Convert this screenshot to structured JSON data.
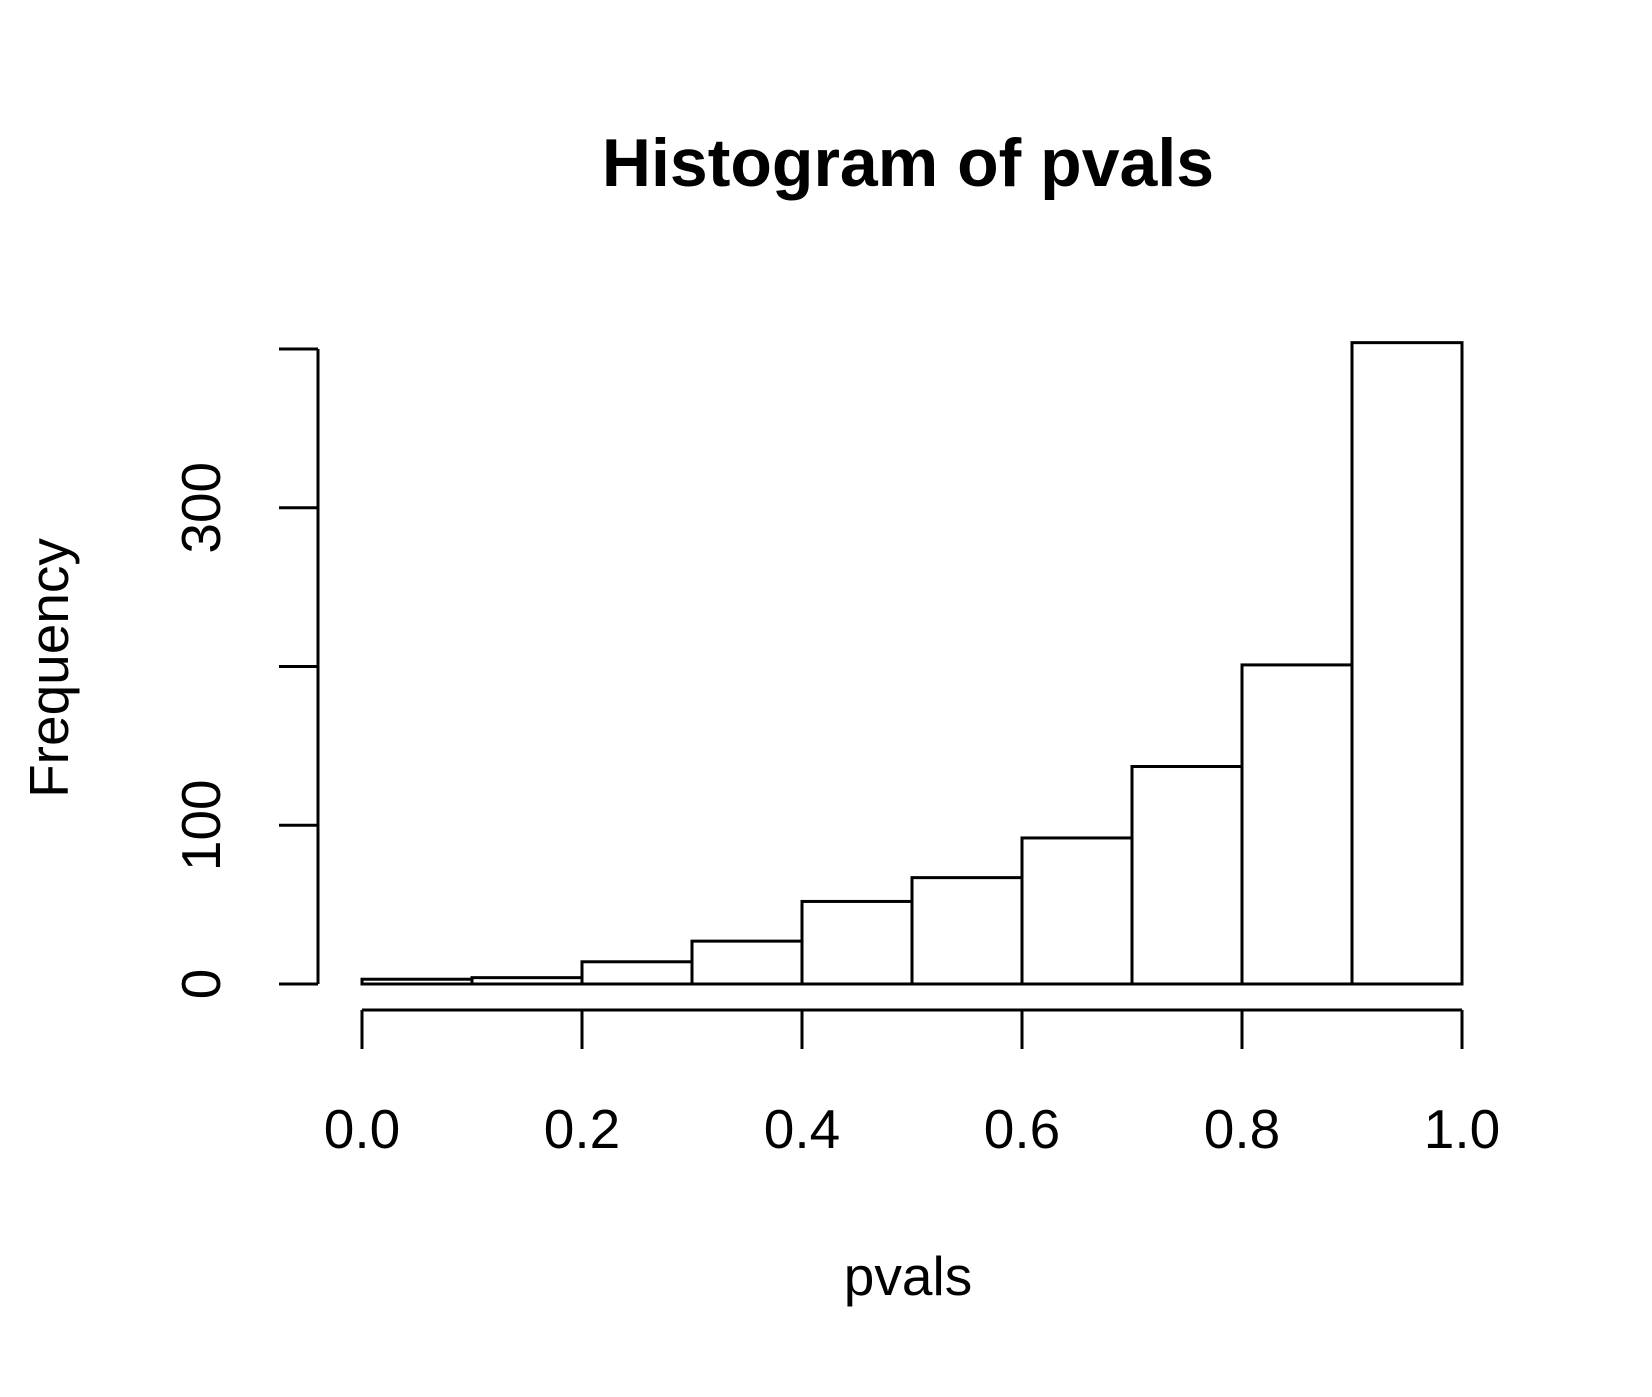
{
  "chart_data": {
    "type": "bar",
    "title": "Histogram of pvals",
    "xlabel": "pvals",
    "ylabel": "Frequency",
    "bins": [
      {
        "start": 0.0,
        "end": 0.1,
        "count": 3
      },
      {
        "start": 0.1,
        "end": 0.2,
        "count": 4
      },
      {
        "start": 0.2,
        "end": 0.3,
        "count": 14
      },
      {
        "start": 0.3,
        "end": 0.4,
        "count": 27
      },
      {
        "start": 0.4,
        "end": 0.5,
        "count": 52
      },
      {
        "start": 0.5,
        "end": 0.6,
        "count": 67
      },
      {
        "start": 0.6,
        "end": 0.7,
        "count": 92
      },
      {
        "start": 0.7,
        "end": 0.8,
        "count": 137
      },
      {
        "start": 0.8,
        "end": 0.9,
        "count": 201
      },
      {
        "start": 0.9,
        "end": 1.0,
        "count": 404
      }
    ],
    "xlim": [
      0.0,
      1.0
    ],
    "ylim": [
      0,
      404
    ],
    "x_ticks": [
      "0.0",
      "0.2",
      "0.4",
      "0.6",
      "0.8",
      "1.0"
    ],
    "y_ticks": [
      0,
      100,
      200,
      300,
      400
    ],
    "y_tick_labels": [
      "0",
      "100",
      "",
      "300",
      ""
    ],
    "grid": false,
    "legend": "none"
  }
}
